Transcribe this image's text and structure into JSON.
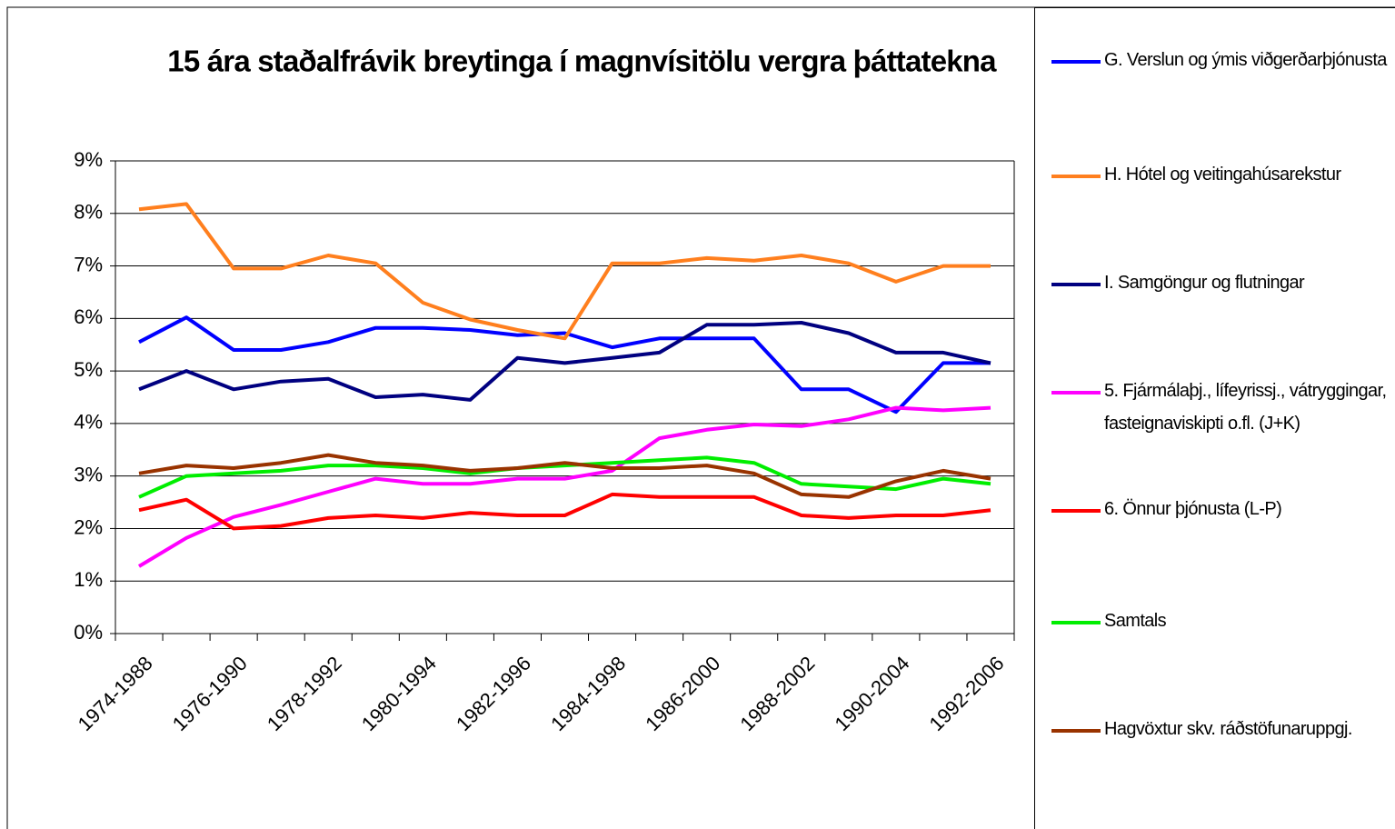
{
  "chart_data": {
    "type": "line",
    "title": "15 ára staðalfrávik breytinga í magnvísitölu vergra þáttatekna",
    "categories": [
      "1974-1988",
      null,
      "1976-1990",
      null,
      "1978-1992",
      null,
      "1980-1994",
      null,
      "1982-1996",
      null,
      "1984-1998",
      null,
      "1986-2000",
      null,
      "1988-2002",
      null,
      "1990-2004",
      null,
      "1992-2006"
    ],
    "series": [
      {
        "name": "G. Verslun og ýmis viðgerðarþjónusta",
        "color": "#0000ff",
        "values": [
          5.55,
          6.02,
          5.4,
          5.4,
          5.55,
          5.82,
          5.82,
          5.78,
          5.68,
          5.72,
          5.45,
          5.62,
          5.62,
          5.62,
          4.65,
          4.65,
          4.22,
          5.15,
          5.15
        ]
      },
      {
        "name": "H. Hótel og veitingahúsarekstur",
        "color": "#ff7f1e",
        "values": [
          8.08,
          8.18,
          6.95,
          6.95,
          7.2,
          7.05,
          6.3,
          5.98,
          5.78,
          5.62,
          7.05,
          7.05,
          7.15,
          7.1,
          7.2,
          7.05,
          6.7,
          7.0,
          7.0
        ]
      },
      {
        "name": "I. Samgöngur og flutningar",
        "color": "#000080",
        "values": [
          4.65,
          5.0,
          4.65,
          4.8,
          4.85,
          4.5,
          4.55,
          4.45,
          5.25,
          5.15,
          5.25,
          5.35,
          5.88,
          5.88,
          5.92,
          5.72,
          5.35,
          5.35,
          5.15
        ]
      },
      {
        "name": "5. Fjármálaþj., lífeyrissj., vátryggingar, fasteignaviskipti o.fl. (J+K)",
        "color": "#ff00ff",
        "values": [
          1.28,
          1.82,
          2.22,
          2.45,
          2.7,
          2.95,
          2.85,
          2.85,
          2.95,
          2.95,
          3.1,
          3.72,
          3.88,
          3.98,
          3.95,
          4.08,
          4.3,
          4.25,
          4.3
        ]
      },
      {
        "name": "6. Önnur þjónusta (L-P)",
        "color": "#ff0000",
        "values": [
          2.35,
          2.55,
          2.0,
          2.05,
          2.2,
          2.25,
          2.2,
          2.3,
          2.25,
          2.25,
          2.65,
          2.6,
          2.6,
          2.6,
          2.25,
          2.2,
          2.25,
          2.25,
          2.35
        ]
      },
      {
        "name": "Samtals",
        "color": "#00ee00",
        "values": [
          2.6,
          3.0,
          3.05,
          3.1,
          3.2,
          3.2,
          3.15,
          3.05,
          3.15,
          3.2,
          3.25,
          3.3,
          3.35,
          3.25,
          2.85,
          2.8,
          2.75,
          2.95,
          2.85
        ]
      },
      {
        "name": "Hagvöxtur skv. ráðstöfunaruppgj.",
        "color": "#993300",
        "values": [
          3.05,
          3.2,
          3.15,
          3.25,
          3.4,
          3.25,
          3.2,
          3.1,
          3.15,
          3.25,
          3.15,
          3.15,
          3.2,
          3.05,
          2.65,
          2.6,
          2.9,
          3.1,
          2.95
        ]
      }
    ],
    "ylim": [
      0,
      9
    ],
    "yticks": [
      {
        "value": 0,
        "label": "0%"
      },
      {
        "value": 1,
        "label": "1%"
      },
      {
        "value": 2,
        "label": "2%"
      },
      {
        "value": 3,
        "label": "3%"
      },
      {
        "value": 4,
        "label": "4%"
      },
      {
        "value": 5,
        "label": "5%"
      },
      {
        "value": 6,
        "label": "6%"
      },
      {
        "value": 7,
        "label": "7%"
      },
      {
        "value": 8,
        "label": "8%"
      },
      {
        "value": 9,
        "label": "9%"
      }
    ],
    "grid": true,
    "legend": "right"
  }
}
